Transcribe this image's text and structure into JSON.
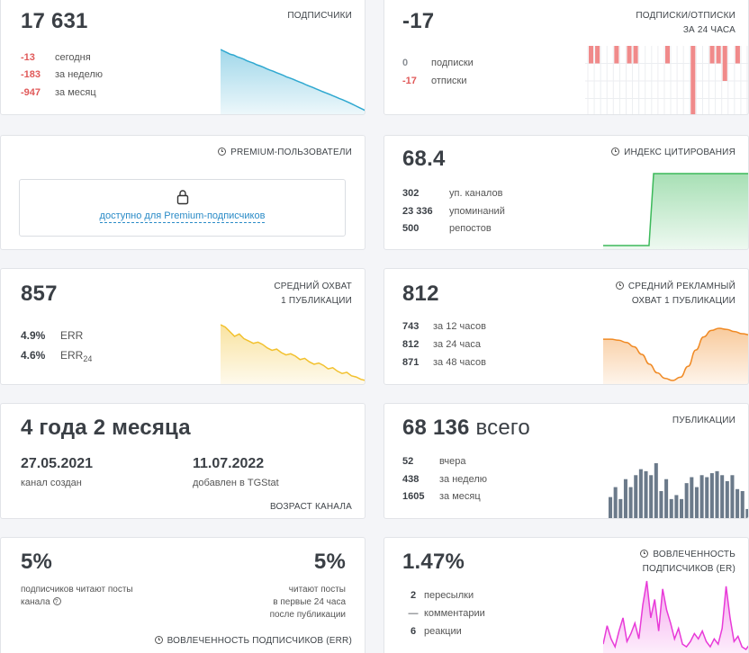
{
  "subscribers": {
    "label": "ПОДПИСЧИКИ",
    "value": "17 631",
    "stats": [
      {
        "n": "-13",
        "t": "сегодня"
      },
      {
        "n": "-183",
        "t": "за неделю"
      },
      {
        "n": "-947",
        "t": "за месяц"
      }
    ],
    "color": "#2fa8d0",
    "series": [
      44,
      43,
      42,
      41,
      40.5,
      39.5,
      38.8,
      38,
      37,
      36.2,
      35.5,
      34.5,
      33.8,
      33,
      32,
      31.2,
      30.5,
      29.6,
      28.8,
      28,
      27,
      26.3,
      25.5,
      24.6,
      23.8,
      23,
      22,
      21.2,
      20.4,
      19.5,
      18.7,
      17.8,
      17,
      16.2,
      15.3,
      14.5,
      13.6,
      12.8,
      11.9,
      11,
      10,
      9,
      8,
      7,
      6
    ]
  },
  "subs_unsubs": {
    "label_line1": "ПОДПИСКИ/ОТПИСКИ",
    "label_line2": "ЗА 24 ЧАСА",
    "value": "-17",
    "stats": [
      {
        "n": "0",
        "t": "подписки"
      },
      {
        "n": "-17",
        "t": "отписки"
      }
    ],
    "color": "#f08a8a",
    "bars": [
      1,
      1,
      0,
      0,
      1,
      0,
      1,
      1,
      0,
      0,
      0,
      0,
      1,
      0,
      0,
      0,
      4,
      0,
      0,
      1,
      1,
      2,
      0,
      1,
      0
    ]
  },
  "premium": {
    "label": "PREMIUM-ПОЛЬЗОВАТЕЛИ",
    "link": "доступно для Premium-подписчиков"
  },
  "citation": {
    "label": "ИНДЕКС ЦИТИРОВАНИЯ",
    "value": "68.4",
    "stats": [
      {
        "n": "302",
        "t": "уп. каналов"
      },
      {
        "n": "23 336",
        "t": "упоминаний"
      },
      {
        "n": "500",
        "t": "репостов"
      }
    ],
    "color": "#3cb95a",
    "series": [
      0,
      0,
      0,
      0,
      0,
      0,
      0,
      0,
      0,
      0,
      0,
      1,
      1,
      1,
      1,
      1,
      1,
      1,
      1,
      1,
      1,
      1,
      1,
      1,
      1,
      1,
      1,
      1,
      1,
      1,
      1,
      1,
      1
    ]
  },
  "avg_reach": {
    "label_line1": "СРЕДНИЙ ОХВАТ",
    "label_line2": "1 ПУБЛИКАЦИИ",
    "value": "857",
    "err": "4.9%",
    "err_label": "ERR",
    "err24": "4.6%",
    "err24_label": "ERR",
    "err24_sub": "24",
    "color": "#f2c12e",
    "series": [
      52,
      50,
      46,
      42,
      44,
      40,
      38,
      36,
      37,
      35,
      32,
      30,
      31,
      28,
      26,
      27,
      25,
      22,
      23,
      20,
      18,
      19,
      17,
      14,
      15,
      12,
      10,
      11,
      8,
      7,
      5,
      4
    ]
  },
  "ad_reach": {
    "label_line1": "СРЕДНИЙ РЕКЛАМНЫЙ",
    "label_line2": "ОХВАТ 1 ПУБЛИКАЦИИ",
    "value": "812",
    "stats": [
      {
        "n": "743",
        "t": "за 12 часов"
      },
      {
        "n": "812",
        "t": "за 24 часа"
      },
      {
        "n": "871",
        "t": "за 48 часов"
      }
    ],
    "color": "#f08a24",
    "series": [
      40,
      40,
      39,
      37,
      33,
      26,
      17,
      9,
      4,
      2,
      5,
      15,
      30,
      42,
      48,
      50,
      49,
      47,
      45,
      44
    ]
  },
  "age": {
    "label": "ВОЗРАСТ КАНАЛА",
    "value": "4 года 2 месяца",
    "created_date": "27.05.2021",
    "created_label": "канал создан",
    "added_date": "11.07.2022",
    "added_label": "добавлен в TGStat"
  },
  "publications": {
    "label": "ПУБЛИКАЦИИ",
    "value": "68 136",
    "value_suffix": "всего",
    "stats": [
      {
        "n": "52",
        "t": "вчера"
      },
      {
        "n": "438",
        "t": "за неделю"
      },
      {
        "n": "1605",
        "t": "за месяц"
      }
    ],
    "color": "#6b7a8a",
    "bars": [
      22,
      32,
      20,
      40,
      32,
      44,
      50,
      48,
      44,
      56,
      28,
      40,
      20,
      24,
      20,
      36,
      42,
      32,
      44,
      42,
      46,
      48,
      44,
      38,
      44,
      30,
      28,
      10
    ]
  },
  "engagement_err": {
    "label": "ВОВЛЕЧЕННОСТЬ ПОДПИСЧИКОВ (ERR)",
    "left_value": "5%",
    "left_desc_line1": "подписчиков читают посты",
    "left_desc_line2": "канала",
    "right_value": "5%",
    "right_desc_line1": "читают посты",
    "right_desc_line2": "в первые 24 часа",
    "right_desc_line3": "после публикации"
  },
  "engagement_er": {
    "label_line1": "ВОВЛЕЧЕННОСТЬ",
    "label_line2": "ПОДПИСЧИКОВ (ER)",
    "value": "1.47%",
    "stats": [
      {
        "n": "2",
        "t": "пересылки"
      },
      {
        "n": "—",
        "t": "комментарии"
      },
      {
        "n": "6",
        "t": "реакции"
      }
    ],
    "color": "#e83ad8",
    "series": [
      10,
      24,
      14,
      8,
      20,
      30,
      12,
      18,
      26,
      14,
      40,
      58,
      30,
      44,
      20,
      52,
      36,
      26,
      14,
      22,
      10,
      8,
      12,
      18,
      14,
      20,
      12,
      8,
      14,
      10,
      22,
      54,
      30,
      12,
      16,
      8,
      6,
      10
    ]
  }
}
